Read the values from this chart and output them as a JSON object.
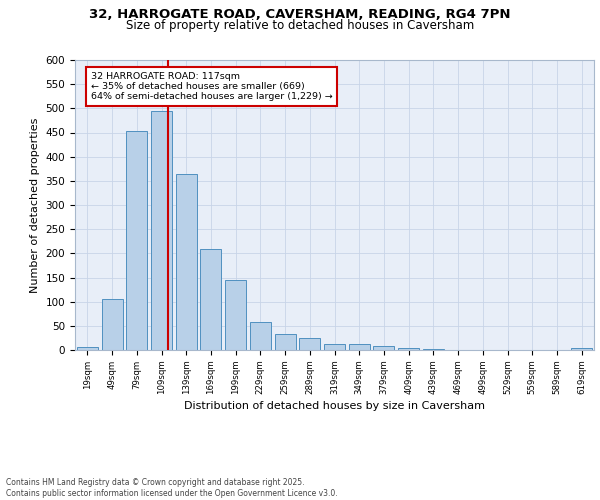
{
  "title_line1": "32, HARROGATE ROAD, CAVERSHAM, READING, RG4 7PN",
  "title_line2": "Size of property relative to detached houses in Caversham",
  "xlabel": "Distribution of detached houses by size in Caversham",
  "ylabel": "Number of detached properties",
  "categories": [
    "19sqm",
    "49sqm",
    "79sqm",
    "109sqm",
    "139sqm",
    "169sqm",
    "199sqm",
    "229sqm",
    "259sqm",
    "289sqm",
    "319sqm",
    "349sqm",
    "379sqm",
    "409sqm",
    "439sqm",
    "469sqm",
    "499sqm",
    "529sqm",
    "559sqm",
    "589sqm",
    "619sqm"
  ],
  "values": [
    7,
    105,
    453,
    495,
    365,
    210,
    145,
    57,
    33,
    25,
    13,
    12,
    8,
    5,
    2,
    0,
    0,
    0,
    0,
    0,
    5
  ],
  "bar_color": "#b8d0e8",
  "bar_edge_color": "#5090c0",
  "grid_color": "#c8d4e8",
  "background_color": "#e8eef8",
  "property_line_color": "#cc0000",
  "annotation_text": "32 HARROGATE ROAD: 117sqm\n← 35% of detached houses are smaller (669)\n64% of semi-detached houses are larger (1,229) →",
  "annotation_box_color": "#cc0000",
  "ylim": [
    0,
    600
  ],
  "yticks": [
    0,
    50,
    100,
    150,
    200,
    250,
    300,
    350,
    400,
    450,
    500,
    550,
    600
  ],
  "footer_line1": "Contains HM Land Registry data © Crown copyright and database right 2025.",
  "footer_line2": "Contains public sector information licensed under the Open Government Licence v3.0."
}
